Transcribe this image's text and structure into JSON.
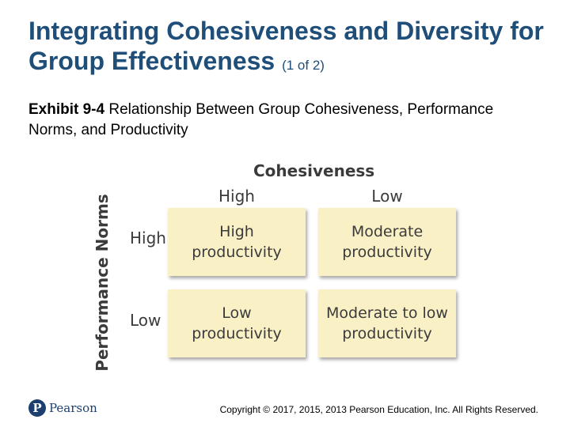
{
  "slide": {
    "title": "Integrating Cohesiveness and Diversity for Group Effectiveness",
    "title_suffix": "(1 of 2)",
    "exhibit_label": "Exhibit 9-4",
    "exhibit_caption": "Relationship Between Group Cohesiveness, Performance Norms, and Productivity"
  },
  "exhibit": {
    "column_heading": "Cohesiveness",
    "columns": [
      "High",
      "Low"
    ],
    "row_heading": "Performance Norms",
    "rows": [
      "High",
      "Low"
    ],
    "cells": [
      [
        "High productivity",
        "Moderate productivity"
      ],
      [
        "Low productivity",
        "Moderate to low productivity"
      ]
    ],
    "cell_color": "#f9f0c6"
  },
  "footer": {
    "logo_text": "Pearson",
    "logo_icon": "pearson-logo-icon",
    "copyright": "Copyright © 2017, 2015, 2013 Pearson Education, Inc. All Rights Reserved."
  }
}
